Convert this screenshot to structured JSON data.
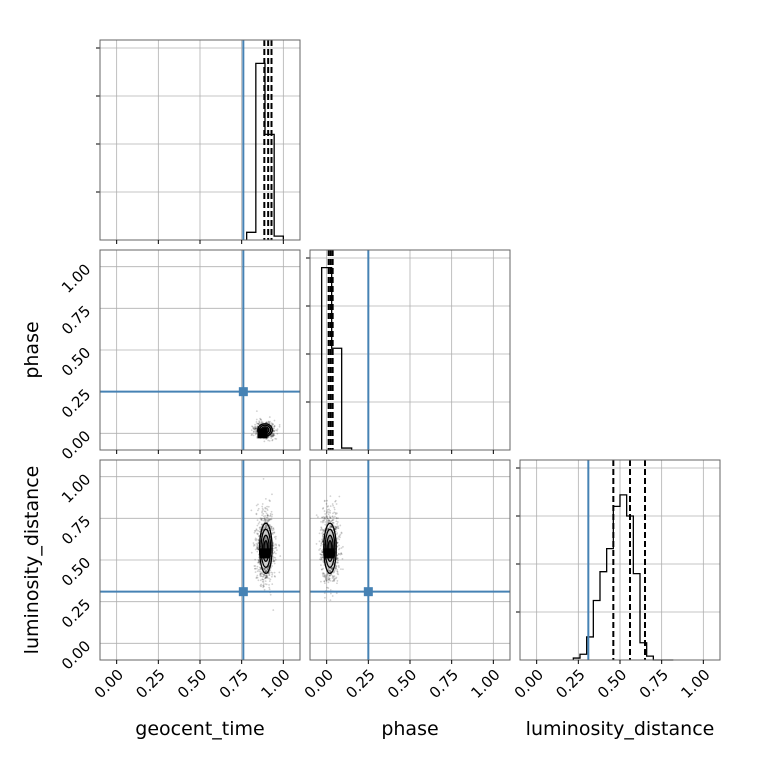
{
  "colors": {
    "truth": "#4682b4",
    "grid": "#b0b0b0",
    "frame": "#666666",
    "ink": "#000000"
  },
  "chart_data": {
    "type": "corner",
    "parameters": [
      "geocent_time",
      "phase",
      "luminosity_distance"
    ],
    "axis_range": [
      -0.1,
      1.1
    ],
    "tick_values": [
      0.0,
      0.25,
      0.5,
      0.75,
      1.0
    ],
    "tick_labels": [
      "0.00",
      "0.25",
      "0.50",
      "0.75",
      "1.00"
    ],
    "grid": true,
    "truths": {
      "geocent_time": 0.76,
      "phase": 0.25,
      "luminosity_distance": 0.31
    },
    "histograms": [
      {
        "parameter": "geocent_time",
        "bin_edges": [
          0.78,
          0.835,
          0.89,
          0.945,
          1.0
        ],
        "counts": [
          0.04,
          0.92,
          0.55,
          0.02
        ],
        "quantiles": [
          0.886,
          0.909,
          0.929
        ],
        "ylim": [
          0,
          1
        ]
      },
      {
        "parameter": "phase",
        "bin_edges": [
          -0.03,
          0.03,
          0.09,
          0.15
        ],
        "counts": [
          0.95,
          0.53,
          0.01
        ],
        "quantiles": [
          0.012,
          0.024,
          0.036
        ],
        "ylim": [
          0,
          1
        ]
      },
      {
        "parameter": "luminosity_distance",
        "bin_edges": [
          0.22,
          0.26,
          0.3,
          0.34,
          0.38,
          0.42,
          0.46,
          0.5,
          0.54,
          0.58,
          0.62,
          0.66,
          0.7,
          0.74,
          0.78,
          0.82
        ],
        "counts": [
          0.01,
          0.03,
          0.12,
          0.31,
          0.46,
          0.58,
          0.8,
          0.86,
          0.75,
          0.45,
          0.09,
          0.02,
          0.0,
          0.0,
          0.0
        ],
        "quantiles": [
          0.46,
          0.56,
          0.65
        ],
        "ylim": [
          0,
          1
        ]
      }
    ],
    "densities": [
      {
        "x_parameter": "geocent_time",
        "y_parameter": "phase",
        "center": [
          0.89,
          0.02
        ],
        "spread": [
          0.035,
          0.03
        ],
        "peak": [
          0.875,
          0.0
        ],
        "samples": 450
      },
      {
        "x_parameter": "geocent_time",
        "y_parameter": "luminosity_distance",
        "center": [
          0.895,
          0.57
        ],
        "spread": [
          0.03,
          0.12
        ],
        "peak": [
          0.89,
          0.54
        ],
        "samples": 900
      },
      {
        "x_parameter": "phase",
        "y_parameter": "luminosity_distance",
        "center": [
          0.02,
          0.57
        ],
        "spread": [
          0.03,
          0.12
        ],
        "peak": [
          0.015,
          0.54
        ],
        "samples": 900
      }
    ]
  }
}
